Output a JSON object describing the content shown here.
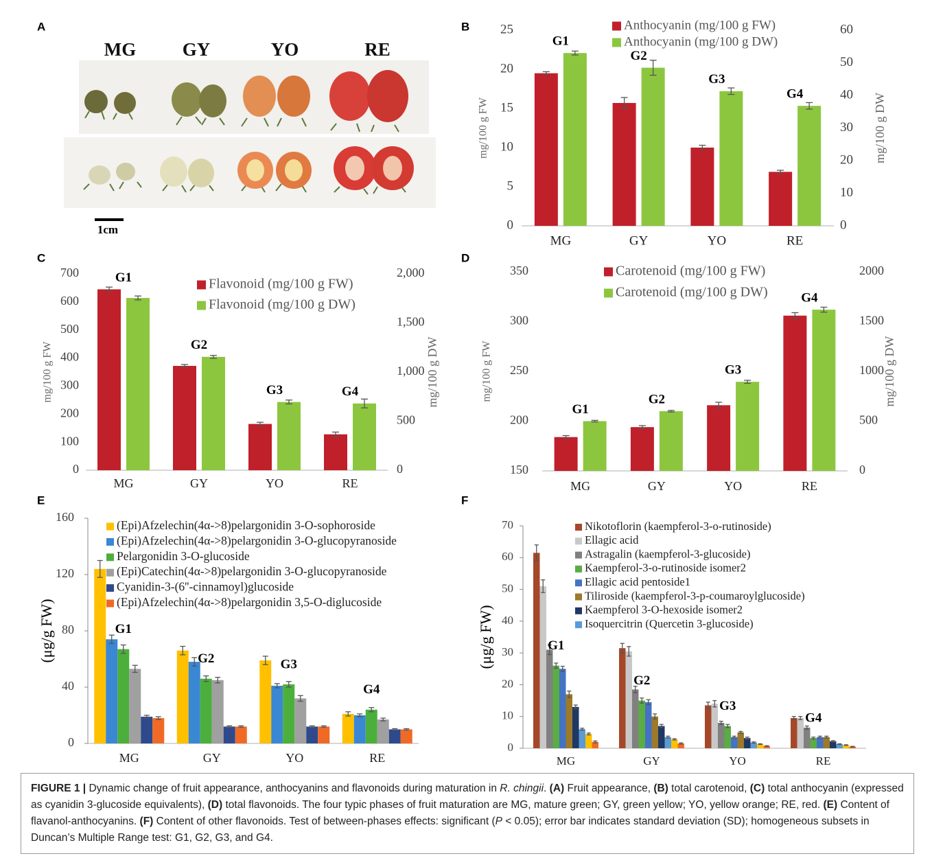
{
  "figure": {
    "panel_a": {
      "label": "A",
      "stages": [
        "MG",
        "GY",
        "YO",
        "RE"
      ],
      "scale": "1cm"
    },
    "caption": [
      {
        "text": "FIGURE 1 |",
        "bold": true
      },
      {
        "text": " Dynamic change of fruit appearance, anthocyanins and flavonoids during maturation in "
      },
      {
        "text": "R. chingii",
        "italic": true
      },
      {
        "text": ". "
      },
      {
        "text": "(A)",
        "bold": true
      },
      {
        "text": " Fruit appearance, "
      },
      {
        "text": "(B)",
        "bold": true
      },
      {
        "text": " total carotenoid, "
      },
      {
        "text": "(C)",
        "bold": true
      },
      {
        "text": " total anthocyanin (expressed as cyanidin 3-glucoside equivalents), "
      },
      {
        "text": "(D)",
        "bold": true
      },
      {
        "text": " total flavonoids. The four typic phases of fruit maturation are MG, mature green; GY, green yellow; YO, yellow orange; RE, red. "
      },
      {
        "text": "(E)",
        "bold": true
      },
      {
        "text": " Content of flavanol-anthocyanins. "
      },
      {
        "text": "(F)",
        "bold": true
      },
      {
        "text": " Content of other flavonoids. Test of between-phases effects: significant ("
      },
      {
        "text": "P",
        "italic": true
      },
      {
        "text": " < 0.05); error bar indicates standard deviation (SD); homogeneous subsets in Duncan’s Multiple Range test: G1, G2, G3, and G4."
      }
    ]
  },
  "chart_data": [
    {
      "type": "bar",
      "label": "B",
      "categories": [
        "MG",
        "GY",
        "YO",
        "RE"
      ],
      "ylabel": "mg/100 g FW",
      "y2label": "mg/100 g DW",
      "ylim": [
        0,
        25
      ],
      "yticks": [
        0,
        5,
        10,
        15,
        20,
        25
      ],
      "y2lim": [
        0,
        60
      ],
      "y2ticks": [
        0,
        10,
        20,
        30,
        40,
        50,
        60
      ],
      "series": [
        {
          "name": "Anthocyanin (mg/100 g FW)",
          "color": "#c0202a",
          "values": [
            19.5,
            15.7,
            10,
            6.9
          ],
          "errors": [
            0.2,
            0.7,
            0.3,
            0.2
          ]
        },
        {
          "name": "Anthocyanin (mg/100 g DW)",
          "color": "#8cc63f",
          "axis": "y2",
          "values": [
            53,
            48.5,
            41.3,
            36.8
          ],
          "errors": [
            0.6,
            2.3,
            1,
            1
          ]
        }
      ],
      "annotations": [
        "G1",
        "G2",
        "G3",
        "G4"
      ]
    },
    {
      "type": "bar",
      "label": "C",
      "categories": [
        "MG",
        "GY",
        "YO",
        "RE"
      ],
      "ylabel": "mg/100 g FW",
      "y2label": "mg/100 g DW",
      "ylim": [
        0,
        700
      ],
      "yticks": [
        0,
        100,
        200,
        300,
        400,
        500,
        600,
        700
      ],
      "y2lim": [
        0,
        2000
      ],
      "y2ticks": [
        0,
        500,
        {
          "value": 1000,
          "label": "1,000"
        },
        {
          "value": 1500,
          "label": "1,500"
        },
        {
          "value": 2000,
          "label": "2,000"
        }
      ],
      "series": [
        {
          "name": "Flavonoid (mg/100 g FW)",
          "color": "#c0202a",
          "values": [
            645,
            372,
            165,
            128
          ],
          "errors": [
            8,
            5,
            6,
            8
          ]
        },
        {
          "name": "Flavonoid (mg/100 g DW)",
          "color": "#8cc63f",
          "axis": "y2",
          "values": [
            1755,
            1155,
            695,
            680
          ],
          "errors": [
            20,
            15,
            20,
            45
          ]
        }
      ],
      "annotations": [
        "G1",
        "G2",
        "G3",
        "G4"
      ]
    },
    {
      "type": "bar",
      "label": "D",
      "categories": [
        "MG",
        "GY",
        "YO",
        "RE"
      ],
      "ylabel": "mg/100 g FW",
      "y2label": "mg/100 g DW",
      "ylim": [
        150,
        350
      ],
      "yticks": [
        150,
        200,
        250,
        300,
        350
      ],
      "y2lim": [
        0,
        2000
      ],
      "y2ticks": [
        0,
        500,
        1000,
        1500,
        2000
      ],
      "series": [
        {
          "name": "Carotenoid (mg/100 g FW)",
          "color": "#c0202a",
          "values": [
            184,
            194,
            216,
            306
          ],
          "errors": [
            1.5,
            1.5,
            3,
            3
          ]
        },
        {
          "name": "Carotenoid (mg/100 g DW)",
          "color": "#8cc63f",
          "axis": "y2",
          "values": [
            500,
            600,
            895,
            1620
          ],
          "errors": [
            8,
            8,
            15,
            25
          ]
        }
      ],
      "annotations": [
        "G1",
        "G2",
        "G3",
        "G4"
      ]
    },
    {
      "type": "bar",
      "label": "E",
      "categories": [
        "MG",
        "GY",
        "YO",
        "RE"
      ],
      "ylabel": "(μg/g FW)",
      "ylim": [
        0,
        160
      ],
      "yticks": [
        0,
        40,
        80,
        120,
        160
      ],
      "series": [
        {
          "name": "(Epi)Afzelechin(4α->8)pelargonidin 3-O-sophoroside",
          "color": "#ffc000",
          "values": [
            124,
            66,
            59,
            21
          ],
          "errors": [
            6,
            3,
            3,
            1.5
          ]
        },
        {
          "name": "(Epi)Afzelechin(4α->8)pelargonidin 3-O-glucopyranoside",
          "color": "#3a87d4",
          "values": [
            74,
            58,
            41,
            20
          ],
          "errors": [
            3,
            3,
            1.5,
            1
          ]
        },
        {
          "name": "Pelargonidin 3-O-glucoside",
          "color": "#4caf3c",
          "values": [
            67,
            46,
            42,
            24
          ],
          "errors": [
            3,
            2,
            2,
            1.5
          ]
        },
        {
          "name": "(Epi)Catechin(4α->8)pelargonidin 3-O-glucopyranoside",
          "color": "#a0a0a0",
          "values": [
            53,
            45,
            32,
            17
          ],
          "errors": [
            2.5,
            2,
            2,
            1
          ]
        },
        {
          "name": "Cyanidin-3-(6''-cinnamoyl)glucoside",
          "color": "#2e4a8c",
          "values": [
            19,
            12,
            12,
            10
          ],
          "errors": [
            1,
            0.5,
            0.5,
            0.5
          ]
        },
        {
          "name": "(Epi)Afzelechin(4α->8)pelargonidin 3,5-O-diglucoside",
          "color": "#f06a25",
          "values": [
            18,
            12,
            12,
            10
          ],
          "errors": [
            1,
            0.5,
            0.5,
            0.5
          ]
        }
      ],
      "annotations": [
        "G1",
        "G2",
        "G3",
        "G4"
      ]
    },
    {
      "type": "bar",
      "label": "F",
      "categories": [
        "MG",
        "GY",
        "YO",
        "RE"
      ],
      "ylabel": "(μg/g FW)",
      "ylim": [
        0,
        70
      ],
      "yticks": [
        0,
        10,
        20,
        30,
        40,
        50,
        60,
        70
      ],
      "series": [
        {
          "name": "Nikotoflorin (kaempferol-3-o-rutinoside)",
          "color": "#a5482a",
          "values": [
            61.5,
            31.5,
            13.5,
            9.5
          ],
          "errors": [
            2.5,
            1.5,
            1,
            0.5
          ]
        },
        {
          "name": "Ellagic acid",
          "color": "#c8c8c8",
          "values": [
            51,
            30.5,
            14,
            9.5
          ],
          "errors": [
            2,
            1.5,
            1,
            0.5
          ]
        },
        {
          "name": "Astragalin (kaempferol-3-glucoside)",
          "color": "#808080",
          "values": [
            31,
            18.5,
            8,
            6.5
          ],
          "errors": [
            1.5,
            1,
            0.5,
            0.5
          ]
        },
        {
          "name": "Kaempferol-3-o-rutinoside isomer2",
          "color": "#5aac44",
          "values": [
            26,
            15,
            7,
            3.2
          ],
          "errors": [
            0.8,
            0.8,
            0.5,
            0.3
          ]
        },
        {
          "name": "Ellagic acid pentoside1",
          "color": "#4472c4",
          "values": [
            25,
            14.5,
            3.5,
            3.5
          ],
          "errors": [
            0.8,
            0.8,
            0.3,
            0.3
          ]
        },
        {
          "name": "Tiliroside (kaempferol-3-p-coumaroylglucoside)",
          "color": "#9c7a2a",
          "values": [
            17,
            10,
            5,
            3.5
          ],
          "errors": [
            1,
            0.8,
            0.3,
            0.3
          ]
        },
        {
          "name": "Kaempferol 3-O-hexoside isomer2",
          "color": "#1f3864",
          "values": [
            13,
            7,
            3.2,
            2.2
          ],
          "errors": [
            0.6,
            0.5,
            0.3,
            0.2
          ]
        },
        {
          "name": "Isoquercitrin (Quercetin 3-glucoside)",
          "color": "#5b9bd5",
          "values": [
            6,
            3.5,
            1.8,
            1.3
          ],
          "errors": [
            0.3,
            0.3,
            0.2,
            0.1
          ]
        },
        {
          "name": null,
          "color": "#ffc000",
          "values": [
            4.5,
            2.8,
            1.3,
            1
          ],
          "errors": [
            0.3,
            0.2,
            0.1,
            0.1
          ]
        },
        {
          "name": null,
          "color": "#f06a25",
          "values": [
            2,
            1.5,
            0.7,
            0.5
          ],
          "errors": [
            0.3,
            0.2,
            0.1,
            0.1
          ]
        }
      ],
      "annotations": [
        "G1",
        "G2",
        "G3",
        "G4"
      ]
    }
  ]
}
